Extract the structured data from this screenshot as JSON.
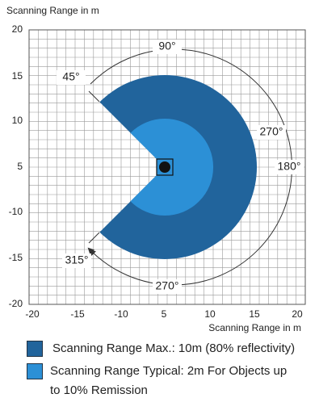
{
  "title": "Scanning Range in m",
  "x_axis_label": "Scanning Range in m",
  "yticks": [
    "20",
    "15",
    "10",
    "5",
    "-10",
    "-15",
    "-20"
  ],
  "xticks": [
    "-20",
    "-15",
    "-10",
    "5",
    "10",
    "15",
    "20"
  ],
  "annotations": [
    "90°",
    "45°",
    "270°",
    "180°",
    "315°",
    "270°"
  ],
  "legend": [
    {
      "label": [
        "Scanning Range Max.: 10m (80% reflectivity)"
      ]
    },
    {
      "label": [
        "Scanning Range Typical: 2m For Objects up",
        "to 10% Remission"
      ]
    }
  ]
}
